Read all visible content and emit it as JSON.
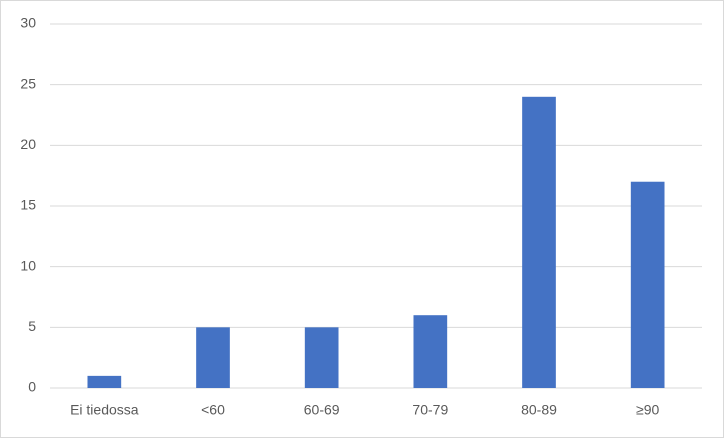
{
  "chart_data": {
    "type": "bar",
    "categories": [
      "Ei tiedossa",
      "<60",
      "60-69",
      "70-79",
      "80-89",
      "≥90"
    ],
    "values": [
      1,
      5,
      5,
      6,
      24,
      17
    ],
    "color": "#4472c4",
    "ylim": [
      0,
      30
    ],
    "yticks": [
      0,
      5,
      10,
      15,
      20,
      25,
      30
    ],
    "grid": true
  }
}
